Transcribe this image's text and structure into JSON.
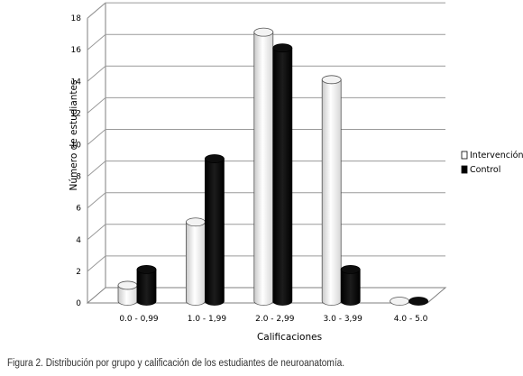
{
  "chart_data": {
    "type": "bar",
    "categories": [
      "0.0 - 0,99",
      "1.0 - 1,99",
      "2.0 - 2,99",
      "3.0 - 3,99",
      "4.0 - 5.0"
    ],
    "series": [
      {
        "name": "Intervención",
        "values": [
          1,
          5,
          17,
          14,
          0
        ],
        "color": "#ffffff"
      },
      {
        "name": "Control",
        "values": [
          2,
          9,
          16,
          2,
          0
        ],
        "color": "#000000"
      }
    ],
    "xlabel": "Calificaciones",
    "ylabel": "Número de estudiantes",
    "ylim": [
      0,
      18
    ],
    "yticks": [
      0,
      2,
      4,
      6,
      8,
      10,
      12,
      14,
      16,
      18
    ],
    "grid": true,
    "legend_position": "right"
  },
  "caption": "Figura 2. Distribución por grupo y calificación de los estudiantes de neuroanatomía."
}
